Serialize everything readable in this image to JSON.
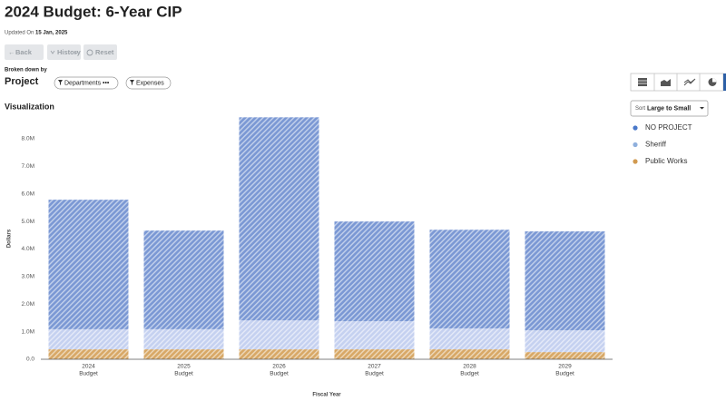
{
  "header": {
    "title": "2024 Budget: 6-Year CIP",
    "updated_label": "Updated On",
    "updated_date": "15 Jan, 2025"
  },
  "toolbar": {
    "back": "Back",
    "history": "History",
    "reset": "Reset"
  },
  "breakdown": {
    "label": "Broken down by",
    "value": "Project",
    "filters": [
      "Departments •••",
      "Expenses"
    ]
  },
  "section_title": "Visualization",
  "sort": {
    "label": "Sort",
    "value": "Large to Small"
  },
  "chart_data": {
    "type": "stacked_bar",
    "x_label": "Fiscal Year",
    "y_label": "Dollars",
    "categories": [
      "2024",
      "2025",
      "2026",
      "2027",
      "2028",
      "2029"
    ],
    "category_sublabels": [
      "Budget",
      "Budget",
      "Budget",
      "Budget",
      "Budget",
      "Budget"
    ],
    "series": [
      {
        "name": "Public Works",
        "color": "#d8a866",
        "legend_color": "#d19a4f",
        "values": [
          360000,
          360000,
          360000,
          360000,
          360000,
          260000
        ]
      },
      {
        "name": "Sheriff",
        "color": "#c5d1f0",
        "legend_color": "#8fb0dd",
        "values": [
          730000,
          730000,
          1050000,
          1020000,
          760000,
          790000
        ]
      },
      {
        "name": "NO PROJECT",
        "color": "#7b98d4",
        "legend_color": "#4a78c9",
        "values": [
          4700000,
          3580000,
          7370000,
          3620000,
          3580000,
          3590000
        ]
      }
    ],
    "legend_order": [
      2,
      1,
      0
    ],
    "ylim": [
      0,
      8800000
    ],
    "yticks": [
      {
        "value": 0,
        "label": "0.0"
      },
      {
        "value": 1000000,
        "label": "1.0M"
      },
      {
        "value": 2000000,
        "label": "2.0M"
      },
      {
        "value": 3000000,
        "label": "3.0M"
      },
      {
        "value": 4000000,
        "label": "4.0M"
      },
      {
        "value": 5000000,
        "label": "5.0M"
      },
      {
        "value": 6000000,
        "label": "6.0M"
      },
      {
        "value": 7000000,
        "label": "7.0M"
      },
      {
        "value": 8000000,
        "label": "8.0M"
      }
    ],
    "grid": false,
    "hatched": true
  }
}
